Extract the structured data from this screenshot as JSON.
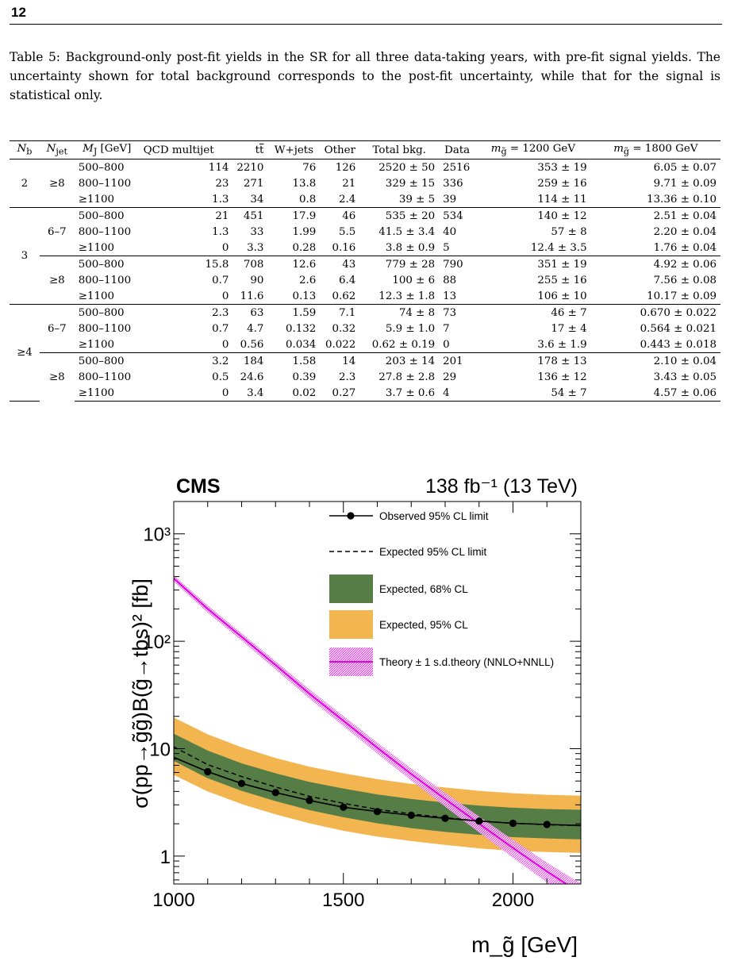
{
  "page": {
    "number": "12"
  },
  "caption": {
    "label": "Table 5:",
    "text": "Background-only post-fit yields in the SR for all three data-taking years, with pre-fit signal yields. The uncertainty shown for total background corresponds to the post-fit uncertainty, while that for the signal is statistical only."
  },
  "table": {
    "headers": [
      "N_b",
      "N_jet",
      "M_J [GeV]",
      "QCD multijet",
      "tt̄",
      "W+jets",
      "Other",
      "Total bkg.",
      "Data",
      "m_g̃ = 1200 GeV",
      "m_g̃ = 1800 GeV"
    ],
    "groups": [
      {
        "nb": "2",
        "nj": "≥8",
        "rows": [
          [
            "500–800",
            "114",
            "2210",
            "76",
            "126",
            "2520 ± 50",
            "2516",
            "353 ± 19",
            "6.05 ± 0.07"
          ],
          [
            "800–1100",
            "23",
            "271",
            "13.8",
            "21",
            "329 ± 15",
            "336",
            "259 ± 16",
            "9.71 ± 0.09"
          ],
          [
            "≥1100",
            "1.3",
            "34",
            "0.8",
            "2.4",
            "39 ± 5",
            "39",
            "114 ± 11",
            "13.36 ± 0.10"
          ]
        ]
      },
      {
        "nb": "3",
        "nj": "6–7",
        "rows": [
          [
            "500–800",
            "21",
            "451",
            "17.9",
            "46",
            "535 ± 20",
            "534",
            "140 ± 12",
            "2.51 ± 0.04"
          ],
          [
            "800–1100",
            "1.3",
            "33",
            "1.99",
            "5.5",
            "41.5 ± 3.4",
            "40",
            "57 ± 8",
            "2.20 ± 0.04"
          ],
          [
            "≥1100",
            "0",
            "3.3",
            "0.28",
            "0.16",
            "3.8 ± 0.9",
            "5",
            "12.4 ± 3.5",
            "1.76 ± 0.04"
          ]
        ]
      },
      {
        "nb": "",
        "nj": "≥8",
        "rows": [
          [
            "500–800",
            "15.8",
            "708",
            "12.6",
            "43",
            "779 ± 28",
            "790",
            "351 ± 19",
            "4.92 ± 0.06"
          ],
          [
            "800–1100",
            "0.7",
            "90",
            "2.6",
            "6.4",
            "100 ± 6",
            "88",
            "255 ± 16",
            "7.56 ± 0.08"
          ],
          [
            "≥1100",
            "0",
            "11.6",
            "0.13",
            "0.62",
            "12.3 ± 1.8",
            "13",
            "106 ± 10",
            "10.17 ± 0.09"
          ]
        ]
      },
      {
        "nb": "≥4",
        "nj": "6–7",
        "rows": [
          [
            "500–800",
            "2.3",
            "63",
            "1.59",
            "7.1",
            "74 ± 8",
            "73",
            "46 ± 7",
            "0.670 ± 0.022"
          ],
          [
            "800–1100",
            "0.7",
            "4.7",
            "0.132",
            "0.32",
            "5.9 ± 1.0",
            "7",
            "17 ± 4",
            "0.564 ± 0.021"
          ],
          [
            "≥1100",
            "0",
            "0.56",
            "0.034",
            "0.022",
            "0.62 ± 0.19",
            "0",
            "3.6 ± 1.9",
            "0.443 ± 0.018"
          ]
        ]
      },
      {
        "nb": "",
        "nj": "≥8",
        "rows": [
          [
            "500–800",
            "3.2",
            "184",
            "1.58",
            "14",
            "203 ± 14",
            "201",
            "178 ± 13",
            "2.10 ± 0.04"
          ],
          [
            "800–1100",
            "0.5",
            "24.6",
            "0.39",
            "2.3",
            "27.8 ± 2.8",
            "29",
            "136 ± 12",
            "3.43 ± 0.05"
          ],
          [
            "≥1100",
            "0",
            "3.4",
            "0.02",
            "0.27",
            "3.7 ± 0.6",
            "4",
            "54 ± 7",
            "4.57 ± 0.06"
          ]
        ]
      }
    ]
  },
  "chart_data": {
    "type": "line",
    "experiment": "CMS",
    "lumi": "138 fb⁻¹ (13 TeV)",
    "xlabel": "m_g̃ [GeV]",
    "ylabel": "σ(pp→g̃g̃)B(g̃→tbs)² [fb]",
    "xlim": [
      1000,
      2200
    ],
    "ylim": [
      0.55,
      2000
    ],
    "y_scale": "log",
    "x_ticks": [
      1000,
      1500,
      2000
    ],
    "y_ticks": [
      {
        "value": 1,
        "label": "1"
      },
      {
        "value": 10,
        "label": "10"
      },
      {
        "value": 100,
        "label": "10²"
      },
      {
        "value": 1000,
        "label": "10³"
      }
    ],
    "legend": [
      "Observed 95% CL limit",
      "Expected 95% CL limit",
      "Expected, 68% CL",
      "Expected, 95% CL",
      "Theory ± 1 s.d.theory (NNLO+NNLL)"
    ],
    "colors": {
      "observed": "#000000",
      "expected": "#000000",
      "band68": "#567d46",
      "band95": "#f3b54f",
      "theory": "#e600e6",
      "theory_band": "#f29cf2"
    },
    "series": [
      {
        "name": "Observed 95% CL limit",
        "x": [
          1000,
          1100,
          1200,
          1300,
          1400,
          1500,
          1600,
          1700,
          1800,
          1900,
          2000,
          2100,
          2200
        ],
        "y": [
          8.3,
          6.1,
          4.75,
          3.9,
          3.3,
          2.85,
          2.6,
          2.4,
          2.25,
          2.12,
          2.02,
          1.97,
          1.93
        ],
        "markers_x": [
          1100,
          1200,
          1300,
          1400,
          1500,
          1600,
          1700,
          1800,
          1900,
          2000,
          2100
        ]
      },
      {
        "name": "Expected 95% CL limit",
        "x": [
          1000,
          1100,
          1200,
          1300,
          1400,
          1500,
          1600,
          1700,
          1800,
          1900,
          2000,
          2100,
          2200
        ],
        "y": [
          10.4,
          7.1,
          5.5,
          4.4,
          3.6,
          3.1,
          2.72,
          2.47,
          2.28,
          2.12,
          2.02,
          1.96,
          1.92
        ]
      },
      {
        "name": "Expected, 68% CL",
        "x": [
          1000,
          1100,
          1200,
          1300,
          1400,
          1500,
          1600,
          1700,
          1800,
          1900,
          2000,
          2100,
          2200
        ],
        "low": [
          7.7,
          5.3,
          4.05,
          3.25,
          2.68,
          2.3,
          2.02,
          1.82,
          1.68,
          1.58,
          1.5,
          1.46,
          1.43
        ],
        "high": [
          13.8,
          9.6,
          7.3,
          5.9,
          4.9,
          4.25,
          3.75,
          3.4,
          3.15,
          2.95,
          2.82,
          2.74,
          2.7
        ]
      },
      {
        "name": "Expected, 95% CL",
        "x": [
          1000,
          1100,
          1200,
          1300,
          1400,
          1500,
          1600,
          1700,
          1800,
          1900,
          2000,
          2100,
          2200
        ],
        "low": [
          5.7,
          4.0,
          3.05,
          2.45,
          2.02,
          1.72,
          1.52,
          1.38,
          1.27,
          1.18,
          1.12,
          1.09,
          1.07
        ],
        "high": [
          19.5,
          13.6,
          10.3,
          8.2,
          6.8,
          5.9,
          5.2,
          4.7,
          4.35,
          4.05,
          3.85,
          3.72,
          3.65
        ]
      },
      {
        "name": "Theory ± 1 s.d.theory (NNLO+NNLL)",
        "x": [
          1000,
          1100,
          1200,
          1300,
          1400,
          1500,
          1600,
          1700,
          1800,
          1900,
          2000,
          2100,
          2200
        ],
        "y": [
          385,
          200,
          110,
          60,
          32.5,
          18.2,
          10.2,
          5.8,
          3.4,
          2.0,
          1.19,
          0.72,
          0.45
        ],
        "rel_unc": [
          0.07,
          0.08,
          0.08,
          0.09,
          0.1,
          0.11,
          0.12,
          0.13,
          0.15,
          0.17,
          0.19,
          0.21,
          0.24
        ]
      }
    ]
  }
}
